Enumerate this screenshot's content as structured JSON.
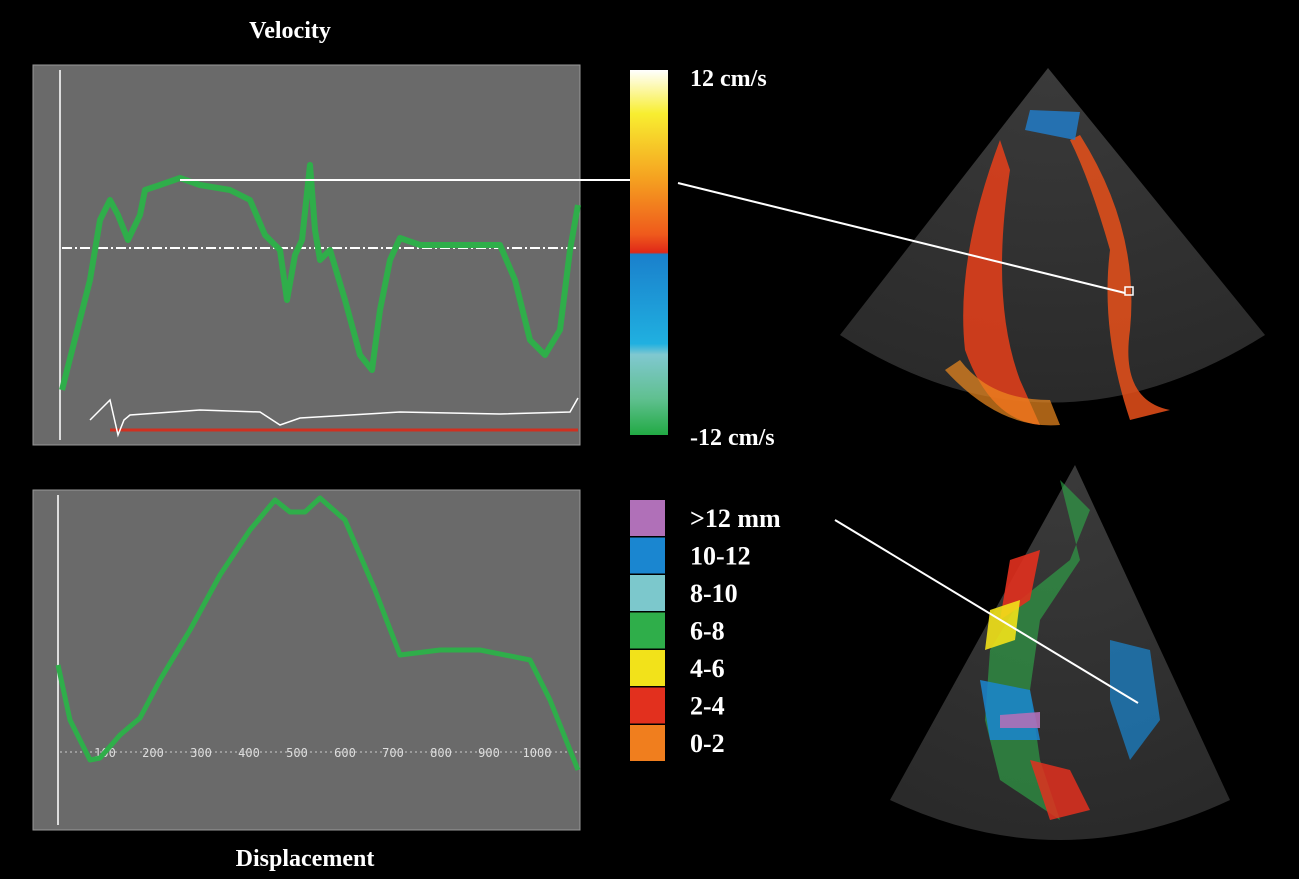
{
  "velocity_panel": {
    "title": "Velocity"
  },
  "displacement_panel": {
    "title": "Displacement",
    "x_labels": [
      "100",
      "200",
      "300",
      "400",
      "500",
      "600",
      "700",
      "800",
      "900",
      "1000"
    ]
  },
  "velocity_scale": {
    "max_label": "12 cm/s",
    "min_label": "-12 cm/s"
  },
  "displacement_legend": [
    {
      "label": ">12 mm",
      "color": "#b070b8"
    },
    {
      "label": "10-12",
      "color": "#1a86d0"
    },
    {
      "label": "8-10",
      "color": "#7cc8cc"
    },
    {
      "label": "6-8",
      "color": "#2fae4a"
    },
    {
      "label": "4-6",
      "color": "#f2e21a"
    },
    {
      "label": "2-4",
      "color": "#e2301e"
    },
    {
      "label": "0-2",
      "color": "#f07e1e"
    }
  ]
}
